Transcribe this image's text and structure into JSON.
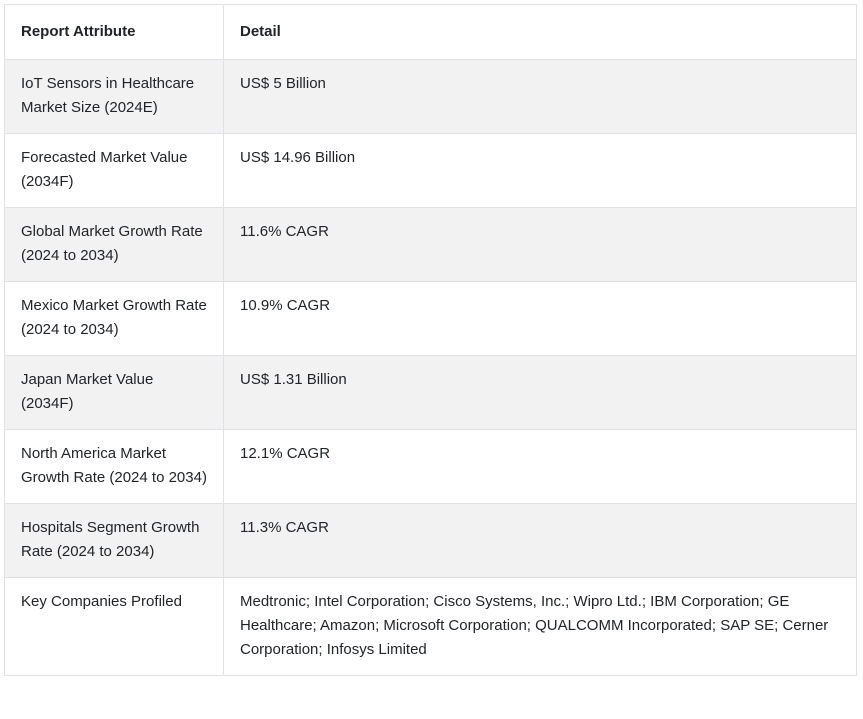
{
  "table": {
    "header": {
      "attribute": "Report Attribute",
      "detail": "Detail"
    },
    "rows": [
      {
        "attribute": "IoT Sensors in Healthcare Market Size (2024E)",
        "detail": "US$ 5 Billion"
      },
      {
        "attribute": "Forecasted Market Value (2034F)",
        "detail": "US$ 14.96 Billion"
      },
      {
        "attribute": "Global Market Growth Rate (2024 to 2034)",
        "detail": "11.6% CAGR"
      },
      {
        "attribute": "Mexico Market Growth Rate (2024 to 2034)",
        "detail": "10.9% CAGR"
      },
      {
        "attribute": "Japan Market Value (2034F)",
        "detail": "US$ 1.31 Billion"
      },
      {
        "attribute": "North America Market Growth Rate (2024 to 2034)",
        "detail": "12.1% CAGR"
      },
      {
        "attribute": "Hospitals Segment Growth Rate (2024 to 2034)",
        "detail": "11.3% CAGR"
      },
      {
        "attribute": "Key Companies Profiled",
        "detail": "Medtronic; Intel Corporation; Cisco Systems, Inc.; Wipro Ltd.; IBM Corporation; GE Healthcare; Amazon; Microsoft Corporation; QUALCOMM Incorporated; SAP SE; Cerner Corporation; Infosys Limited"
      }
    ],
    "colors": {
      "stripe_row_bg": "#f2f2f2",
      "row_bg": "#ffffff",
      "border": "#dee2e6",
      "text": "#212529"
    }
  }
}
